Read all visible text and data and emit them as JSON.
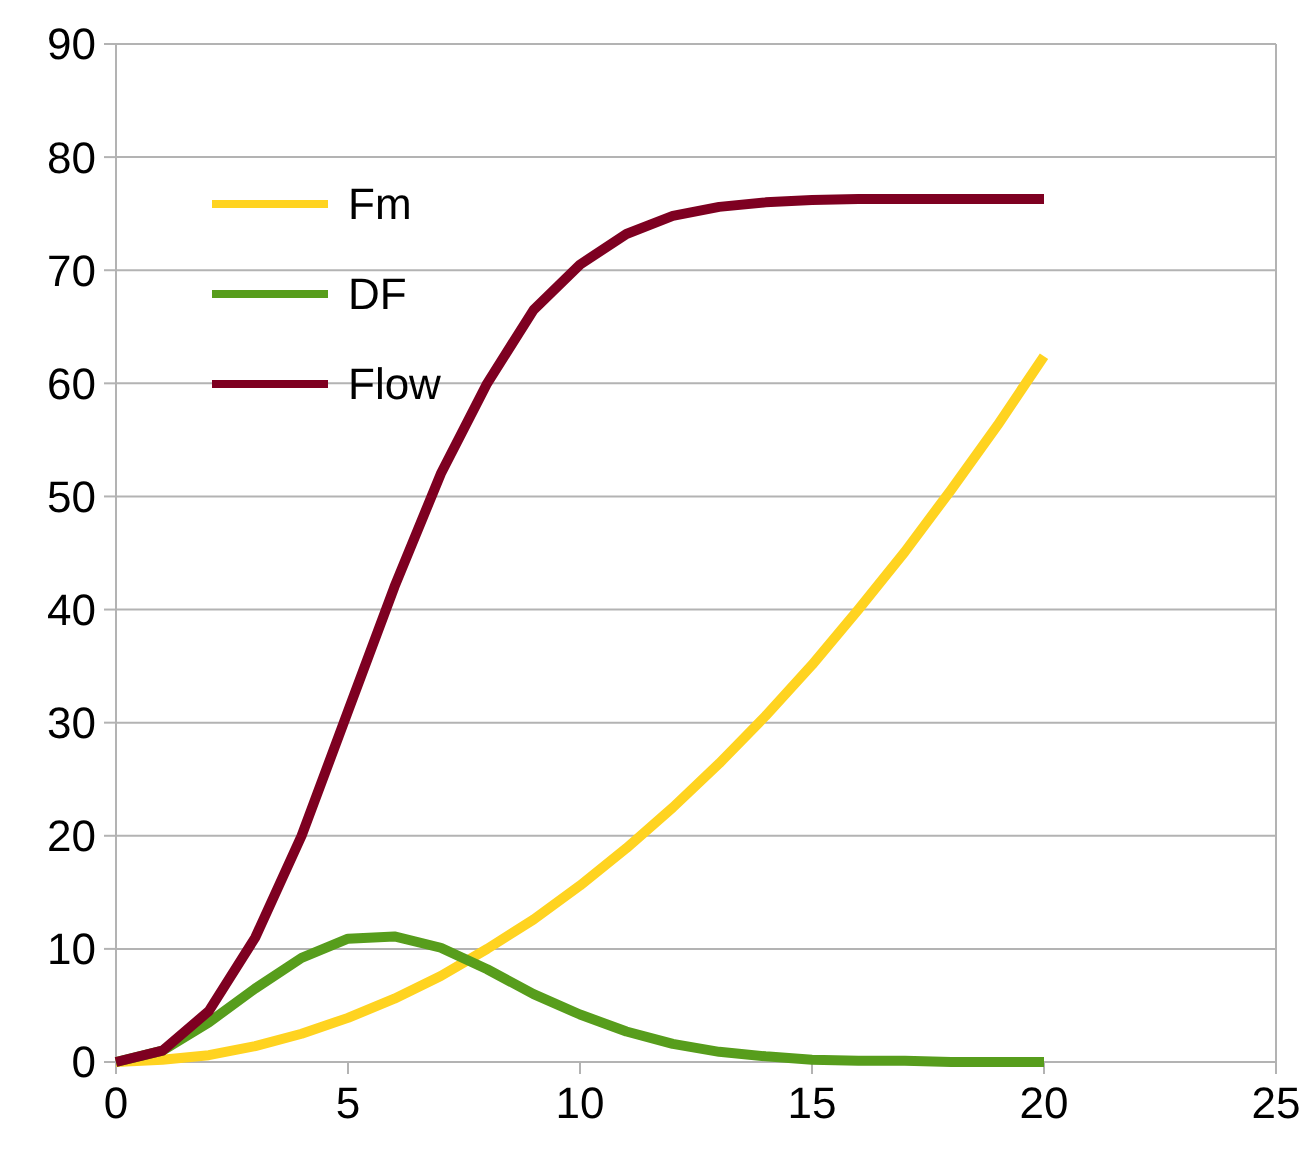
{
  "chart_data": {
    "type": "line",
    "x": [
      0,
      1,
      2,
      3,
      4,
      5,
      6,
      7,
      8,
      9,
      10,
      11,
      12,
      13,
      14,
      15,
      16,
      17,
      18,
      19,
      20
    ],
    "series": [
      {
        "name": "Fm",
        "color": "#ffd320",
        "values": [
          0,
          0.2,
          0.6,
          1.4,
          2.5,
          3.9,
          5.6,
          7.6,
          10,
          12.6,
          15.6,
          18.9,
          22.5,
          26.4,
          30.6,
          35.1,
          40,
          45.1,
          50.6,
          56.3,
          62.4
        ]
      },
      {
        "name": "DF",
        "color": "#579d1c",
        "values": [
          0,
          1,
          3.5,
          6.5,
          9.2,
          10.9,
          11.1,
          10.1,
          8.2,
          6,
          4.2,
          2.7,
          1.6,
          0.9,
          0.5,
          0.2,
          0.1,
          0.1,
          0,
          0,
          0
        ]
      },
      {
        "name": "Flow",
        "color": "#7e0021",
        "values": [
          0,
          1,
          4.5,
          11,
          20,
          31,
          42,
          52,
          60,
          66.5,
          70.5,
          73.2,
          74.8,
          75.6,
          76,
          76.2,
          76.3,
          76.3,
          76.3,
          76.3,
          76.3
        ]
      }
    ],
    "xlim": [
      0,
      25
    ],
    "xticks": [
      0,
      5,
      10,
      15,
      20,
      25
    ],
    "ylim": [
      0,
      90
    ],
    "yticks": [
      0,
      10,
      20,
      30,
      40,
      50,
      60,
      70,
      80,
      90
    ],
    "grid": "y",
    "legend": "top left",
    "marker": "none",
    "line_style": "solid"
  }
}
